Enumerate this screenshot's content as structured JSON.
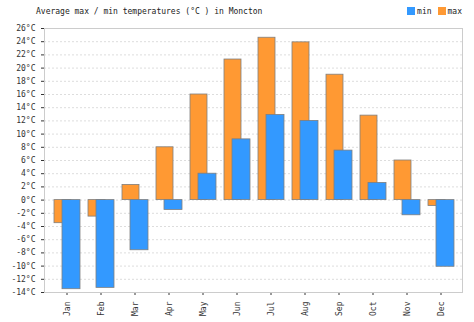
{
  "chart_data": {
    "type": "bar",
    "title": "Average max / min temperatures (°C ) in Moncton",
    "categories": [
      "Jan",
      "Feb",
      "Mar",
      "Apr",
      "May",
      "Jun",
      "Jul",
      "Aug",
      "Sep",
      "Oct",
      "Nov",
      "Dec"
    ],
    "series": [
      {
        "name": "min",
        "color": "#3399ff",
        "values": [
          -13.5,
          -13.3,
          -7.6,
          -1.5,
          4,
          9.2,
          12.9,
          12,
          7.5,
          2.6,
          -2.3,
          -10.1
        ]
      },
      {
        "name": "max",
        "color": "#ff9933",
        "values": [
          -3.5,
          -2.5,
          2.3,
          8,
          16,
          21.3,
          24.6,
          23.9,
          19,
          12.8,
          6,
          -0.9
        ]
      }
    ],
    "ylim": [
      -14,
      26
    ],
    "yticks": [
      {
        "value": -14,
        "label": "-14°C"
      },
      {
        "value": -12,
        "label": "-12°C"
      },
      {
        "value": -10,
        "label": "-10°C"
      },
      {
        "value": -8,
        "label": "-8°C"
      },
      {
        "value": -6,
        "label": "-6°C"
      },
      {
        "value": -4,
        "label": "-4°C"
      },
      {
        "value": -2,
        "label": "-2°C"
      },
      {
        "value": 0,
        "label": "0°C"
      },
      {
        "value": 2,
        "label": "2°C"
      },
      {
        "value": 4,
        "label": "4°C"
      },
      {
        "value": 6,
        "label": "6°C"
      },
      {
        "value": 8,
        "label": "8°C"
      },
      {
        "value": 10,
        "label": "10°C"
      },
      {
        "value": 12,
        "label": "12°C"
      },
      {
        "value": 14,
        "label": "14°C"
      },
      {
        "value": 16,
        "label": "16°C"
      },
      {
        "value": 18,
        "label": "18°C"
      },
      {
        "value": 20,
        "label": "20°C"
      },
      {
        "value": 22,
        "label": "22°C"
      },
      {
        "value": 24,
        "label": "24°C"
      },
      {
        "value": 26,
        "label": "26°C"
      }
    ],
    "grid": true,
    "legend": "top-right"
  }
}
